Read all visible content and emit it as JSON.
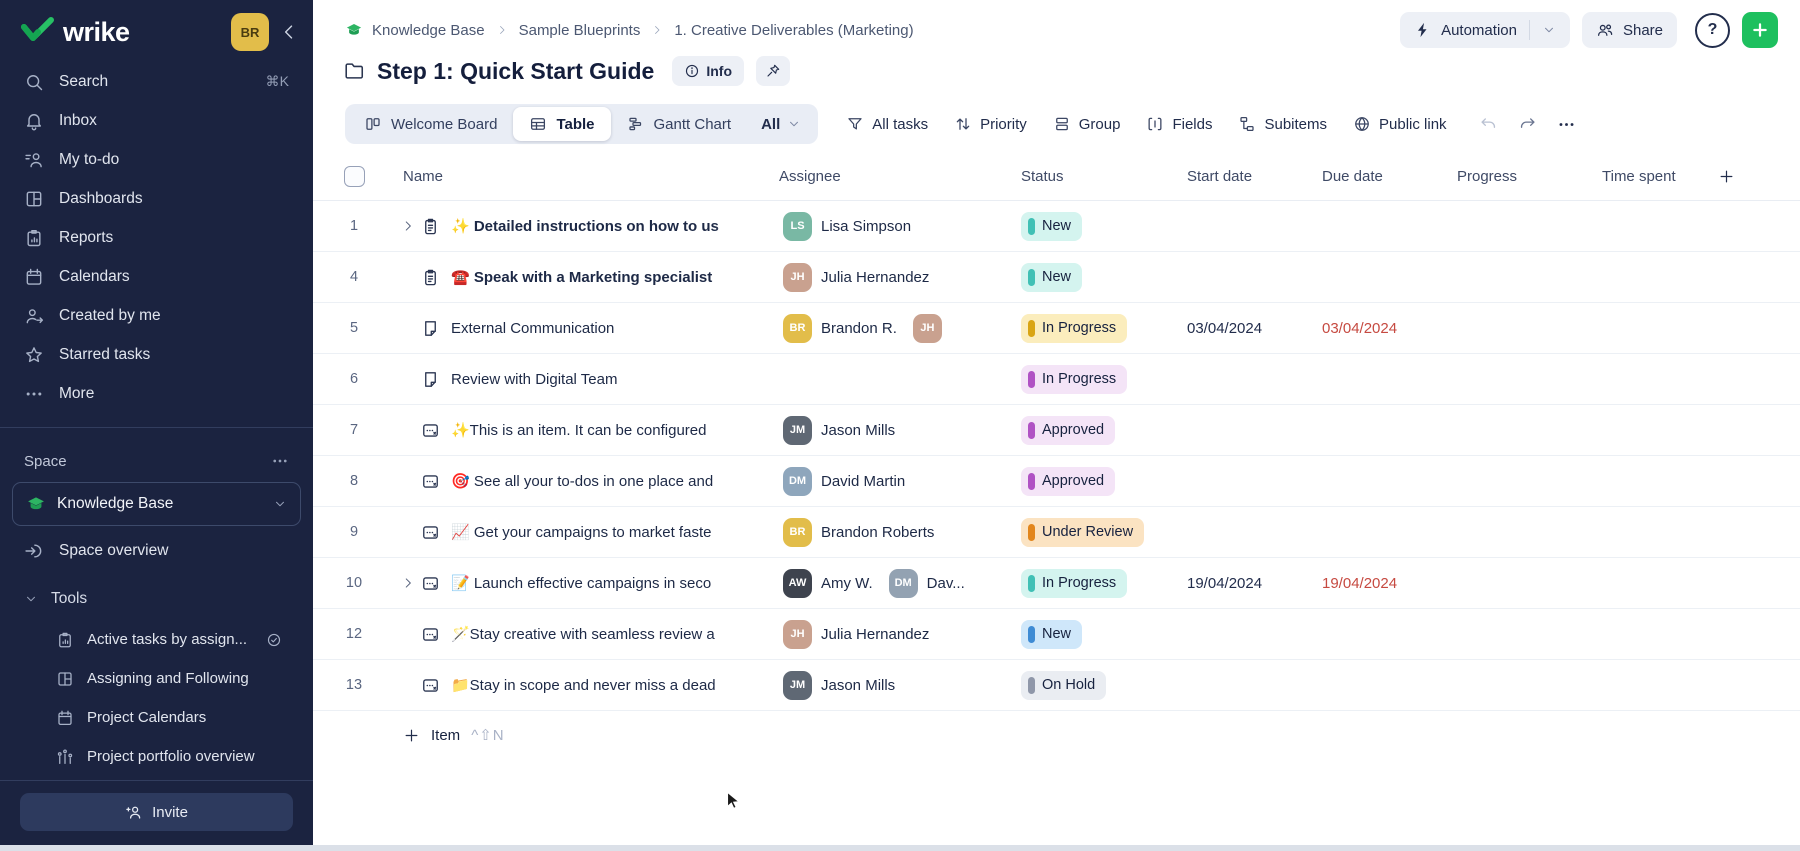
{
  "colors": {
    "accent_green": "#1ec05f",
    "overdue_red": "#c64a41",
    "sidebar_bg": "#1b2340",
    "logo_green": "#27c065",
    "status_themes": {
      "teal": {
        "bg": "#d4f4ef",
        "bar": "#41c0b5"
      },
      "yellow": {
        "bg": "#fbedbd",
        "bar": "#d9a514"
      },
      "purple": {
        "bg": "#f4e4f7",
        "bar": "#b052c4"
      },
      "orange": {
        "bg": "#fbe3c2",
        "bar": "#e2861c"
      },
      "blue": {
        "bg": "#cfe7fa",
        "bar": "#3e8bd4"
      },
      "gray": {
        "bg": "#eaedf2",
        "bar": "#8f97a9"
      }
    }
  },
  "brand": {
    "name": "wrike",
    "user_avatar_initials": "BR"
  },
  "sidebar": {
    "nav": [
      {
        "label": "Search",
        "icon": "search",
        "shortcut": "⌘K"
      },
      {
        "label": "Inbox",
        "icon": "bell"
      },
      {
        "label": "My to-do",
        "icon": "todo"
      },
      {
        "label": "Dashboards",
        "icon": "dashboard"
      },
      {
        "label": "Reports",
        "icon": "report"
      },
      {
        "label": "Calendars",
        "icon": "calendar"
      },
      {
        "label": "Created by me",
        "icon": "person-arrow"
      },
      {
        "label": "Starred tasks",
        "icon": "star"
      },
      {
        "label": "More",
        "icon": "dots"
      }
    ],
    "space_label": "Space",
    "space": {
      "name": "Knowledge Base",
      "icon": "grad-cap"
    },
    "space_overview": "Space overview",
    "tools_label": "Tools",
    "tools": [
      {
        "label": "Active tasks by assign...",
        "icon": "report",
        "trailing": "check-circle"
      },
      {
        "label": "Assigning and Following",
        "icon": "dashboard"
      },
      {
        "label": "Project Calendars",
        "icon": "calendar"
      },
      {
        "label": "Project portfolio overview",
        "icon": "portfolio"
      }
    ],
    "invite_label": "Invite"
  },
  "breadcrumb": {
    "items": [
      "Knowledge Base",
      "Sample Blueprints",
      "1. Creative Deliverables (Marketing)"
    ]
  },
  "top_actions": {
    "automation": "Automation",
    "share": "Share",
    "help": "?"
  },
  "page": {
    "title": "Step 1: Quick Start Guide",
    "info_label": "Info"
  },
  "toolbar": {
    "views": [
      {
        "label": "Welcome Board",
        "icon": "board",
        "active": false
      },
      {
        "label": "Table",
        "icon": "table",
        "active": true
      },
      {
        "label": "Gantt Chart",
        "icon": "gantt",
        "active": false
      }
    ],
    "view_filter": "All",
    "actions": [
      {
        "label": "All tasks",
        "icon": "filter"
      },
      {
        "label": "Priority",
        "icon": "updown"
      },
      {
        "label": "Group",
        "icon": "group"
      },
      {
        "label": "Fields",
        "icon": "fields"
      },
      {
        "label": "Subitems",
        "icon": "subitems"
      },
      {
        "label": "Public link",
        "icon": "globe"
      }
    ]
  },
  "table": {
    "columns": [
      "Name",
      "Assignee",
      "Status",
      "Start date",
      "Due date",
      "Progress",
      "Time spent"
    ],
    "add_item": {
      "label": "Item",
      "shortcut": "^⇧N"
    },
    "rows": [
      {
        "num": "1",
        "expand": true,
        "type": "task",
        "bold": true,
        "title": "✨ Detailed instructions on how to us",
        "assignees": [
          {
            "name": "Lisa Simpson",
            "initials": "LS",
            "color": "#79b8a4"
          }
        ],
        "status": {
          "label": "New",
          "theme": "teal"
        },
        "start": "",
        "due": "",
        "due_overdue": false
      },
      {
        "num": "4",
        "expand": false,
        "type": "task",
        "bold": true,
        "title": "☎️ Speak with a Marketing specialist",
        "assignees": [
          {
            "name": "Julia Hernandez",
            "initials": "JH",
            "color": "#c9a18f"
          }
        ],
        "status": {
          "label": "New",
          "theme": "teal"
        },
        "start": "",
        "due": "",
        "due_overdue": false
      },
      {
        "num": "5",
        "expand": false,
        "type": "file",
        "bold": false,
        "title": "External Communication",
        "assignees": [
          {
            "name": "Brandon R.",
            "initials": "BR",
            "color": "#e2bd4a"
          },
          {
            "name": "",
            "initials": "JH",
            "color": "#c9a18f"
          }
        ],
        "status": {
          "label": "In Progress",
          "theme": "yellow"
        },
        "start": "03/04/2024",
        "due": "03/04/2024",
        "due_overdue": true
      },
      {
        "num": "6",
        "expand": false,
        "type": "file",
        "bold": false,
        "title": "Review with Digital Team",
        "assignees": [],
        "status": {
          "label": "In Progress",
          "theme": "purple"
        },
        "start": "",
        "due": "",
        "due_overdue": false
      },
      {
        "num": "7",
        "expand": false,
        "type": "item",
        "bold": false,
        "title": "✨This is an item. It can be configured",
        "assignees": [
          {
            "name": "Jason Mills",
            "initials": "JM",
            "color": "#5f6874"
          }
        ],
        "status": {
          "label": "Approved",
          "theme": "purple"
        },
        "start": "",
        "due": "",
        "due_overdue": false
      },
      {
        "num": "8",
        "expand": false,
        "type": "item",
        "bold": false,
        "title": "🎯 See all your to-dos in one place and",
        "assignees": [
          {
            "name": "David Martin",
            "initials": "DM",
            "color": "#8ea6bc"
          }
        ],
        "status": {
          "label": "Approved",
          "theme": "purple"
        },
        "start": "",
        "due": "",
        "due_overdue": false
      },
      {
        "num": "9",
        "expand": false,
        "type": "item",
        "bold": false,
        "title": "📈 Get your campaigns to market faste",
        "assignees": [
          {
            "name": "Brandon Roberts",
            "initials": "BR",
            "color": "#e2bd4a"
          }
        ],
        "status": {
          "label": "Under Review",
          "theme": "orange"
        },
        "start": "",
        "due": "",
        "due_overdue": false
      },
      {
        "num": "10",
        "expand": true,
        "type": "item",
        "bold": false,
        "title": "📝 Launch effective campaigns in seco",
        "assignees": [
          {
            "name": "Amy W.",
            "initials": "AW",
            "color": "#3e434e"
          },
          {
            "name": "Dav...",
            "initials": "DM",
            "color": "#93a2b2"
          }
        ],
        "status": {
          "label": "In Progress",
          "theme": "teal"
        },
        "start": "19/04/2024",
        "due": "19/04/2024",
        "due_overdue": true
      },
      {
        "num": "12",
        "expand": false,
        "type": "item",
        "bold": false,
        "title": "🪄Stay creative with seamless review a",
        "assignees": [
          {
            "name": "Julia Hernandez",
            "initials": "JH",
            "color": "#c9a18f"
          }
        ],
        "status": {
          "label": "New",
          "theme": "blue"
        },
        "start": "",
        "due": "",
        "due_overdue": false
      },
      {
        "num": "13",
        "expand": false,
        "type": "item",
        "bold": false,
        "title": "📁Stay in scope and never miss a dead",
        "assignees": [
          {
            "name": "Jason Mills",
            "initials": "JM",
            "color": "#5f6874"
          }
        ],
        "status": {
          "label": "On Hold",
          "theme": "gray"
        },
        "start": "",
        "due": "",
        "due_overdue": false
      }
    ]
  }
}
